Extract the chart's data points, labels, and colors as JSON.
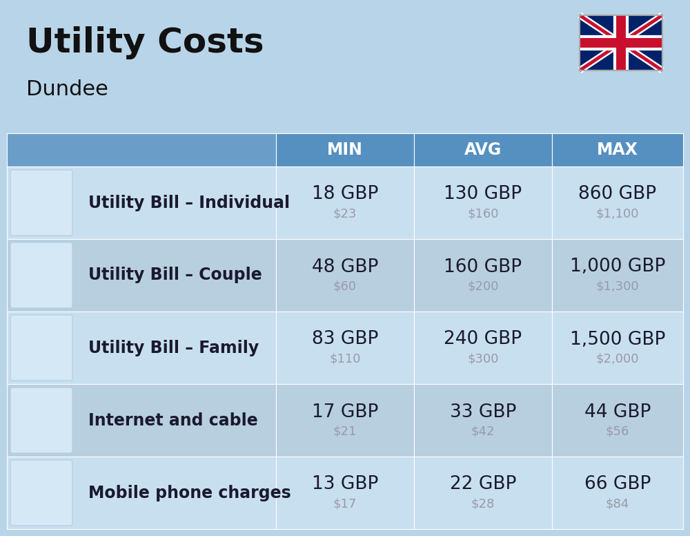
{
  "title": "Utility Costs",
  "subtitle": "Dundee",
  "bg_color": "#b8d4e8",
  "header_color": "#5590c0",
  "header_left_color": "#6a9ec8",
  "header_text_color": "#ffffff",
  "row_bg_even": "#c8dff0",
  "row_bg_odd": "#b8cfe0",
  "col_headers": [
    "MIN",
    "AVG",
    "MAX"
  ],
  "rows": [
    {
      "label": "Utility Bill – Individual",
      "min_gbp": "18 GBP",
      "min_usd": "$23",
      "avg_gbp": "130 GBP",
      "avg_usd": "$160",
      "max_gbp": "860 GBP",
      "max_usd": "$1,100"
    },
    {
      "label": "Utility Bill – Couple",
      "min_gbp": "48 GBP",
      "min_usd": "$60",
      "avg_gbp": "160 GBP",
      "avg_usd": "$200",
      "max_gbp": "1,000 GBP",
      "max_usd": "$1,300"
    },
    {
      "label": "Utility Bill – Family",
      "min_gbp": "83 GBP",
      "min_usd": "$110",
      "avg_gbp": "240 GBP",
      "avg_usd": "$300",
      "max_gbp": "1,500 GBP",
      "max_usd": "$2,000"
    },
    {
      "label": "Internet and cable",
      "min_gbp": "17 GBP",
      "min_usd": "$21",
      "avg_gbp": "33 GBP",
      "avg_usd": "$42",
      "max_gbp": "44 GBP",
      "max_usd": "$56"
    },
    {
      "label": "Mobile phone charges",
      "min_gbp": "13 GBP",
      "min_usd": "$17",
      "avg_gbp": "22 GBP",
      "avg_usd": "$28",
      "max_gbp": "66 GBP",
      "max_usd": "$84"
    }
  ],
  "gbp_fontsize": 19,
  "usd_fontsize": 13,
  "label_fontsize": 17,
  "header_fontsize": 17,
  "title_fontsize": 36,
  "subtitle_fontsize": 22,
  "separator_color": "#ffffff",
  "text_dark": "#1a1a2e",
  "text_usd": "#999aaa"
}
